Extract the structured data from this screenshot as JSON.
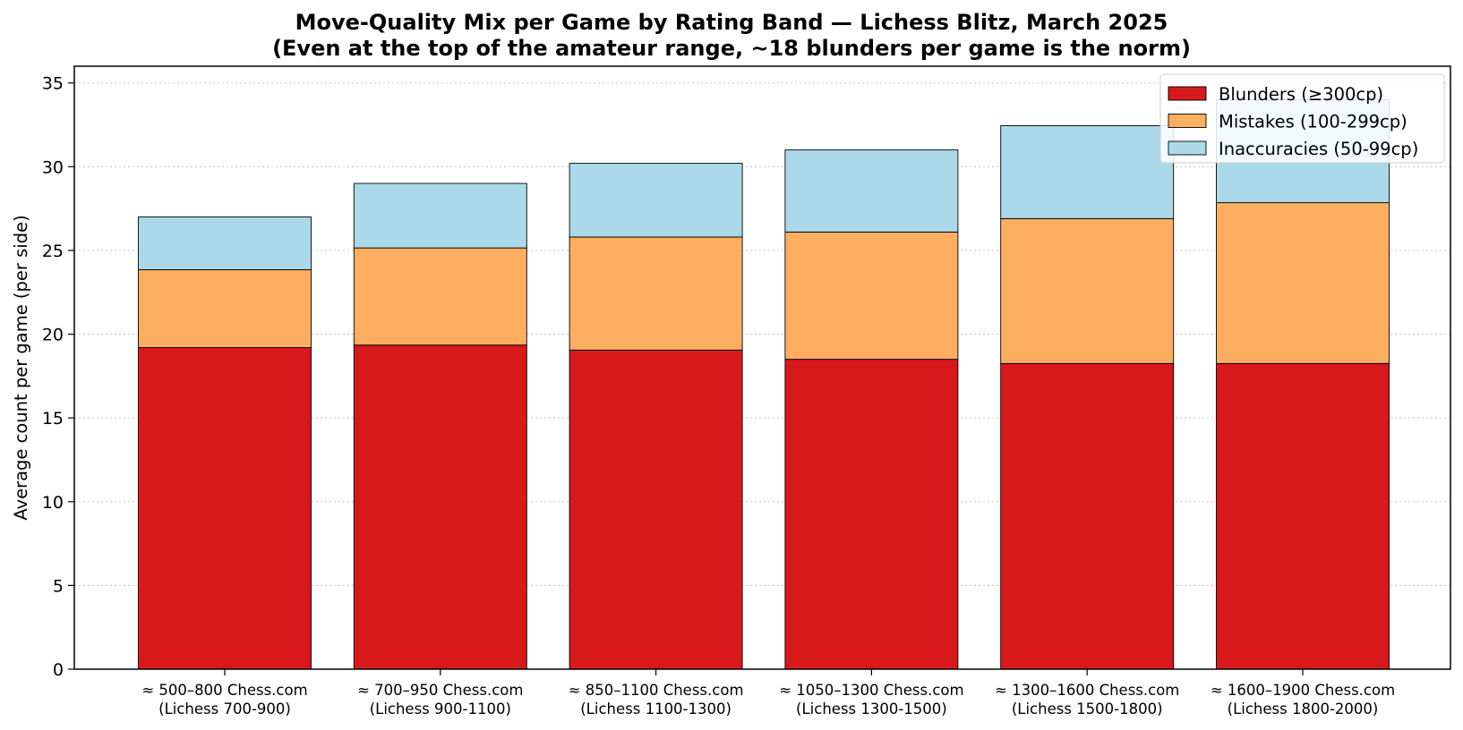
{
  "chart_data": {
    "type": "bar",
    "stacked": true,
    "title_line1": "Move-Quality Mix per Game by Rating Band — Lichess Blitz, March 2025",
    "title_line2": "(Even at the top of the amateur range, ~18 blunders per game is the norm)",
    "xlabel": "",
    "ylabel": "Average count per game (per side)",
    "ylim": [
      0,
      36
    ],
    "yticks": [
      0,
      5,
      10,
      15,
      20,
      25,
      30,
      35
    ],
    "grid": "horizontal-dotted",
    "legend_position": "top-right",
    "categories": [
      [
        "≈ 500–800 Chess.com",
        "(Lichess 700-900)"
      ],
      [
        "≈ 700–950 Chess.com",
        "(Lichess 900-1100)"
      ],
      [
        "≈ 850–1100 Chess.com",
        "(Lichess 1100-1300)"
      ],
      [
        "≈ 1050–1300 Chess.com",
        "(Lichess 1300-1500)"
      ],
      [
        "≈ 1300–1600 Chess.com",
        "(Lichess 1500-1800)"
      ],
      [
        "≈ 1600–1900 Chess.com",
        "(Lichess 1800-2000)"
      ]
    ],
    "series": [
      {
        "name": "Blunders (≥300cp)",
        "color": "#d7191c",
        "values": [
          19.2,
          19.35,
          19.05,
          18.5,
          18.25,
          18.25
        ]
      },
      {
        "name": "Mistakes (100-299cp)",
        "color": "#fdae61",
        "values": [
          4.65,
          5.8,
          6.75,
          7.6,
          8.65,
          9.6
        ]
      },
      {
        "name": "Inaccuracies (50-99cp)",
        "color": "#abd9e9",
        "values": [
          3.15,
          3.85,
          4.4,
          4.9,
          5.55,
          6.15
        ]
      }
    ]
  }
}
